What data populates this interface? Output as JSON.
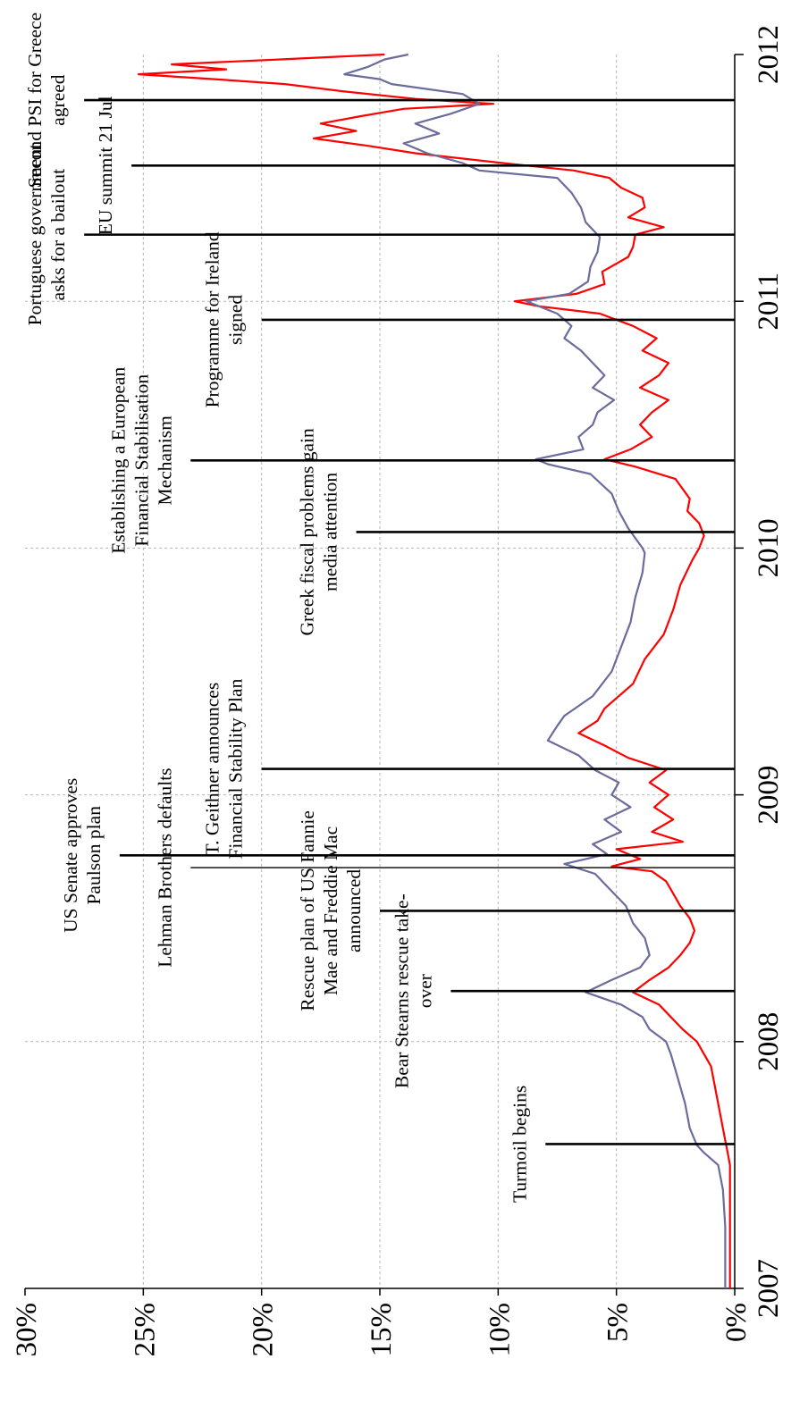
{
  "chart_data": {
    "type": "line",
    "orientation": "rotated-90-clockwise",
    "title": "",
    "xlabel": "",
    "ylabel": "",
    "xlim": [
      2007.0,
      2012.0
    ],
    "ylim": [
      0,
      30
    ],
    "x_ticks": [
      {
        "value": 2007,
        "label": "2007"
      },
      {
        "value": 2008,
        "label": "2008"
      },
      {
        "value": 2009,
        "label": "2009"
      },
      {
        "value": 2010,
        "label": "2010"
      },
      {
        "value": 2011,
        "label": "2011"
      },
      {
        "value": 2012,
        "label": "2012"
      }
    ],
    "y_ticks": [
      {
        "value": 0,
        "label": "0%"
      },
      {
        "value": 5,
        "label": "5%"
      },
      {
        "value": 10,
        "label": "10%"
      },
      {
        "value": 15,
        "label": "15%"
      },
      {
        "value": 20,
        "label": "20%"
      },
      {
        "value": 25,
        "label": "25%"
      },
      {
        "value": 30,
        "label": "30%"
      }
    ],
    "grid": true,
    "series": [
      {
        "color": "#ff0000",
        "points": [
          [
            2007.0,
            0.2
          ],
          [
            2007.25,
            0.2
          ],
          [
            2007.5,
            0.2
          ],
          [
            2007.55,
            0.3
          ],
          [
            2007.6,
            0.4
          ],
          [
            2007.7,
            0.6
          ],
          [
            2007.8,
            0.8
          ],
          [
            2007.9,
            1.0
          ],
          [
            2008.0,
            1.6
          ],
          [
            2008.05,
            2.2
          ],
          [
            2008.1,
            2.7
          ],
          [
            2008.15,
            3.2
          ],
          [
            2008.2,
            4.3
          ],
          [
            2008.25,
            3.6
          ],
          [
            2008.3,
            2.8
          ],
          [
            2008.35,
            2.3
          ],
          [
            2008.4,
            1.9
          ],
          [
            2008.45,
            1.7
          ],
          [
            2008.5,
            1.9
          ],
          [
            2008.55,
            2.3
          ],
          [
            2008.6,
            2.6
          ],
          [
            2008.65,
            2.9
          ],
          [
            2008.69,
            3.5
          ],
          [
            2008.71,
            5.2
          ],
          [
            2008.74,
            4.0
          ],
          [
            2008.78,
            5.0
          ],
          [
            2008.81,
            2.2
          ],
          [
            2008.85,
            3.5
          ],
          [
            2008.9,
            2.6
          ],
          [
            2008.95,
            3.4
          ],
          [
            2009.0,
            2.8
          ],
          [
            2009.05,
            3.6
          ],
          [
            2009.1,
            2.9
          ],
          [
            2009.15,
            4.5
          ],
          [
            2009.2,
            5.5
          ],
          [
            2009.25,
            6.6
          ],
          [
            2009.3,
            5.8
          ],
          [
            2009.35,
            5.5
          ],
          [
            2009.45,
            4.3
          ],
          [
            2009.55,
            3.8
          ],
          [
            2009.65,
            3.0
          ],
          [
            2009.75,
            2.6
          ],
          [
            2009.85,
            2.3
          ],
          [
            2009.95,
            1.8
          ],
          [
            2010.0,
            1.5
          ],
          [
            2010.05,
            1.3
          ],
          [
            2010.1,
            1.5
          ],
          [
            2010.15,
            2.0
          ],
          [
            2010.2,
            1.9
          ],
          [
            2010.28,
            2.5
          ],
          [
            2010.33,
            4.2
          ],
          [
            2010.36,
            5.5
          ],
          [
            2010.4,
            4.4
          ],
          [
            2010.45,
            3.5
          ],
          [
            2010.5,
            4.0
          ],
          [
            2010.55,
            3.5
          ],
          [
            2010.6,
            2.8
          ],
          [
            2010.65,
            4.0
          ],
          [
            2010.7,
            3.2
          ],
          [
            2010.75,
            2.8
          ],
          [
            2010.8,
            3.9
          ],
          [
            2010.85,
            3.3
          ],
          [
            2010.9,
            4.3
          ],
          [
            2010.95,
            5.7
          ],
          [
            2010.98,
            8.3
          ],
          [
            2011.0,
            9.3
          ],
          [
            2011.03,
            6.7
          ],
          [
            2011.07,
            5.5
          ],
          [
            2011.12,
            5.6
          ],
          [
            2011.18,
            4.5
          ],
          [
            2011.22,
            4.3
          ],
          [
            2011.27,
            4.2
          ],
          [
            2011.3,
            3.0
          ],
          [
            2011.34,
            4.5
          ],
          [
            2011.38,
            3.8
          ],
          [
            2011.42,
            3.9
          ],
          [
            2011.46,
            4.8
          ],
          [
            2011.5,
            5.3
          ],
          [
            2011.53,
            6.8
          ],
          [
            2011.56,
            9.8
          ],
          [
            2011.6,
            13.5
          ],
          [
            2011.63,
            15.5
          ],
          [
            2011.66,
            17.8
          ],
          [
            2011.69,
            16.0
          ],
          [
            2011.72,
            17.5
          ],
          [
            2011.75,
            15.8
          ],
          [
            2011.78,
            14.0
          ],
          [
            2011.8,
            10.2
          ],
          [
            2011.82,
            13.5
          ],
          [
            2011.85,
            16.5
          ],
          [
            2011.88,
            19.0
          ],
          [
            2011.9,
            22.0
          ],
          [
            2011.92,
            25.2
          ],
          [
            2011.94,
            21.5
          ],
          [
            2011.96,
            23.8
          ],
          [
            2011.98,
            19.2
          ],
          [
            2012.0,
            14.8
          ]
        ]
      },
      {
        "color": "#6b6b9c",
        "points": [
          [
            2007.0,
            0.4
          ],
          [
            2007.25,
            0.4
          ],
          [
            2007.4,
            0.5
          ],
          [
            2007.5,
            0.7
          ],
          [
            2007.55,
            1.3
          ],
          [
            2007.58,
            1.6
          ],
          [
            2007.65,
            1.9
          ],
          [
            2007.75,
            2.1
          ],
          [
            2007.85,
            2.4
          ],
          [
            2007.95,
            2.7
          ],
          [
            2008.0,
            2.9
          ],
          [
            2008.05,
            3.6
          ],
          [
            2008.1,
            3.9
          ],
          [
            2008.15,
            4.8
          ],
          [
            2008.2,
            6.3
          ],
          [
            2008.25,
            5.2
          ],
          [
            2008.3,
            4.0
          ],
          [
            2008.35,
            3.6
          ],
          [
            2008.42,
            3.8
          ],
          [
            2008.48,
            4.3
          ],
          [
            2008.55,
            4.6
          ],
          [
            2008.62,
            5.3
          ],
          [
            2008.68,
            5.9
          ],
          [
            2008.72,
            7.2
          ],
          [
            2008.76,
            5.4
          ],
          [
            2008.8,
            6.0
          ],
          [
            2008.85,
            4.8
          ],
          [
            2008.9,
            5.5
          ],
          [
            2008.95,
            4.4
          ],
          [
            2009.0,
            5.2
          ],
          [
            2009.05,
            4.9
          ],
          [
            2009.1,
            5.9
          ],
          [
            2009.16,
            6.6
          ],
          [
            2009.22,
            7.9
          ],
          [
            2009.28,
            7.5
          ],
          [
            2009.32,
            7.2
          ],
          [
            2009.4,
            6.0
          ],
          [
            2009.5,
            5.2
          ],
          [
            2009.6,
            4.8
          ],
          [
            2009.7,
            4.4
          ],
          [
            2009.8,
            4.2
          ],
          [
            2009.9,
            3.9
          ],
          [
            2009.98,
            3.8
          ],
          [
            2010.0,
            3.9
          ],
          [
            2010.08,
            4.5
          ],
          [
            2010.15,
            4.9
          ],
          [
            2010.22,
            5.2
          ],
          [
            2010.3,
            6.1
          ],
          [
            2010.34,
            7.9
          ],
          [
            2010.36,
            8.4
          ],
          [
            2010.4,
            6.4
          ],
          [
            2010.45,
            6.6
          ],
          [
            2010.5,
            6.0
          ],
          [
            2010.55,
            5.8
          ],
          [
            2010.6,
            5.1
          ],
          [
            2010.65,
            6.0
          ],
          [
            2010.7,
            5.5
          ],
          [
            2010.75,
            6.0
          ],
          [
            2010.8,
            6.5
          ],
          [
            2010.85,
            7.2
          ],
          [
            2010.9,
            6.9
          ],
          [
            2010.95,
            7.5
          ],
          [
            2011.0,
            8.8
          ],
          [
            2011.03,
            7.0
          ],
          [
            2011.08,
            6.2
          ],
          [
            2011.14,
            6.1
          ],
          [
            2011.2,
            5.8
          ],
          [
            2011.26,
            5.7
          ],
          [
            2011.32,
            6.3
          ],
          [
            2011.38,
            6.5
          ],
          [
            2011.44,
            6.9
          ],
          [
            2011.5,
            7.5
          ],
          [
            2011.53,
            10.8
          ],
          [
            2011.56,
            11.5
          ],
          [
            2011.6,
            13.0
          ],
          [
            2011.64,
            14.0
          ],
          [
            2011.68,
            12.5
          ],
          [
            2011.72,
            13.5
          ],
          [
            2011.76,
            12.0
          ],
          [
            2011.8,
            10.8
          ],
          [
            2011.84,
            11.5
          ],
          [
            2011.88,
            14.5
          ],
          [
            2011.9,
            15.0
          ],
          [
            2011.92,
            16.5
          ],
          [
            2011.95,
            15.5
          ],
          [
            2011.98,
            14.8
          ],
          [
            2012.0,
            13.8
          ]
        ]
      }
    ],
    "events": [
      {
        "x": 2007.585,
        "top": 8.0,
        "lines": [
          "Turmoil  begins"
        ]
      },
      {
        "x": 2008.205,
        "top": 12.0,
        "lines": [
          "Bear Stearns rescue take-",
          "over"
        ]
      },
      {
        "x": 2008.53,
        "top": 15.0,
        "lines": [
          "Rescue plan of US Fannie",
          "Mae and Freddie Mac",
          "announced"
        ]
      },
      {
        "x": 2008.705,
        "top": 23.0,
        "thin": true,
        "lines": [
          "Lehman Brothers  defaults"
        ]
      },
      {
        "x": 2008.755,
        "top": 26.0,
        "lines": [
          "US Senate  approves",
          "Paulson  plan"
        ]
      },
      {
        "x": 2009.105,
        "top": 20.0,
        "lines": [
          "T. Geithner  announces",
          "Financial  Stability  Plan"
        ]
      },
      {
        "x": 2010.065,
        "top": 16.0,
        "lines": [
          "Greek  fiscal  problems  gain",
          "media  attention"
        ]
      },
      {
        "x": 2010.355,
        "top": 23.0,
        "lines": [
          "Establishing  a European",
          "Financial  Stabilisation",
          "Mechanism"
        ]
      },
      {
        "x": 2010.925,
        "top": 20.0,
        "lines": [
          "Programme  for Ireland",
          "signed"
        ]
      },
      {
        "x": 2011.27,
        "top": 27.5,
        "lines": [
          "Portuguese  government",
          "asks for a bailout"
        ]
      },
      {
        "x": 2011.55,
        "top": 25.5,
        "lines": [
          "EU summit  21 Jul"
        ]
      },
      {
        "x": 2011.815,
        "top": 27.5,
        "lines": [
          "Second PSI for Greece",
          "agreed"
        ]
      }
    ]
  }
}
